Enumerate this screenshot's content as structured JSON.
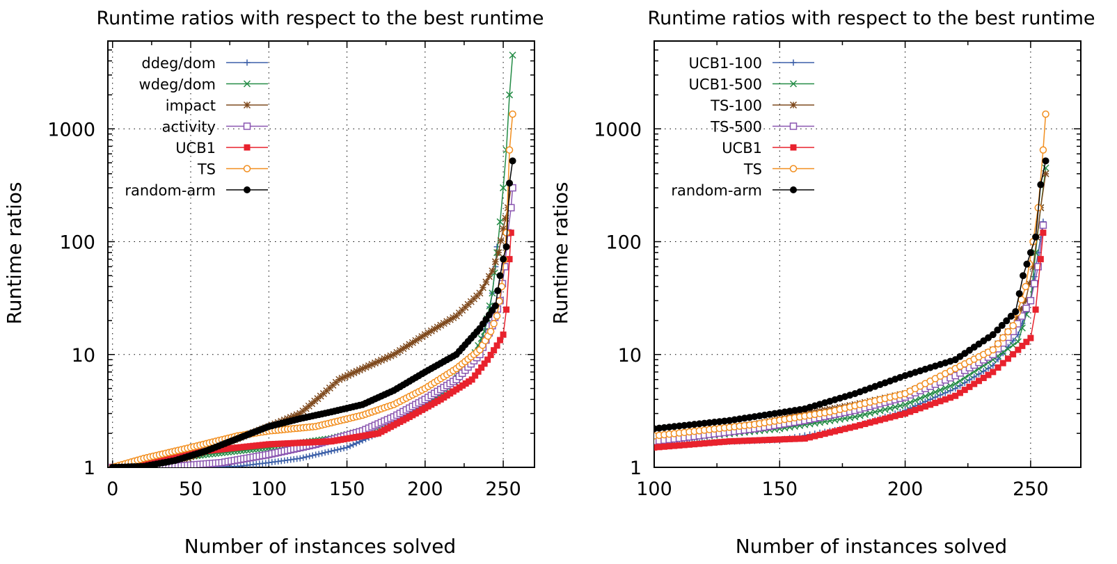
{
  "chart_data": [
    {
      "type": "line",
      "title": "Runtime ratios with respect to the best runtime",
      "xlabel": "Number of instances solved",
      "ylabel": "Runtime ratios",
      "yscale": "log",
      "xlim": [
        -3,
        270
      ],
      "ylim": [
        1,
        6000
      ],
      "xticks": [
        0,
        50,
        100,
        150,
        200,
        250
      ],
      "xtick_labels": [
        "0",
        "50",
        "100",
        "150",
        "200",
        "250"
      ],
      "yticks": [
        1,
        10,
        100,
        1000
      ],
      "ytick_labels": [
        "1",
        "10",
        "100",
        "1000"
      ],
      "grid": true,
      "legend_position": "top-left",
      "series": [
        {
          "name": "ddeg/dom",
          "color": "#3b5fa8",
          "marker": "plus",
          "points": [
            [
              0,
              1
            ],
            [
              40,
              1
            ],
            [
              80,
              1.02
            ],
            [
              100,
              1.1
            ],
            [
              120,
              1.2
            ],
            [
              150,
              1.5
            ],
            [
              170,
              2
            ],
            [
              190,
              3
            ],
            [
              210,
              4.5
            ],
            [
              225,
              7
            ],
            [
              235,
              12
            ],
            [
              240,
              20
            ],
            [
              243,
              35
            ],
            [
              245,
              60
            ],
            [
              246,
              90
            ]
          ]
        },
        {
          "name": "wdeg/dom",
          "color": "#238b45",
          "marker": "x",
          "points": [
            [
              0,
              1
            ],
            [
              30,
              1.15
            ],
            [
              60,
              1.3
            ],
            [
              100,
              1.5
            ],
            [
              140,
              1.8
            ],
            [
              170,
              2.3
            ],
            [
              195,
              3.3
            ],
            [
              215,
              5
            ],
            [
              230,
              9
            ],
            [
              238,
              16
            ],
            [
              243,
              35
            ],
            [
              246,
              80
            ],
            [
              248,
              150
            ],
            [
              250,
              300
            ],
            [
              252,
              650
            ],
            [
              254,
              2000
            ],
            [
              256,
              4500
            ]
          ]
        },
        {
          "name": "impact",
          "color": "#7f4a1e",
          "marker": "star",
          "points": [
            [
              0,
              1
            ],
            [
              20,
              1.02
            ],
            [
              40,
              1.1
            ],
            [
              60,
              1.4
            ],
            [
              80,
              1.8
            ],
            [
              100,
              2.3
            ],
            [
              120,
              3
            ],
            [
              135,
              4.5
            ],
            [
              145,
              6
            ],
            [
              160,
              7.5
            ],
            [
              180,
              10
            ],
            [
              200,
              15
            ],
            [
              220,
              22
            ],
            [
              235,
              35
            ],
            [
              243,
              55
            ],
            [
              247,
              80
            ],
            [
              250,
              130
            ],
            [
              253,
              200
            ],
            [
              255,
              300
            ]
          ]
        },
        {
          "name": "activity",
          "color": "#8a55b0",
          "marker": "square",
          "points": [
            [
              0,
              1
            ],
            [
              40,
              1.02
            ],
            [
              70,
              1.1
            ],
            [
              100,
              1.3
            ],
            [
              130,
              1.6
            ],
            [
              160,
              2.1
            ],
            [
              180,
              2.8
            ],
            [
              200,
              4
            ],
            [
              220,
              6
            ],
            [
              235,
              10
            ],
            [
              243,
              18
            ],
            [
              248,
              30
            ],
            [
              251,
              60
            ],
            [
              253,
              120
            ],
            [
              255,
              200
            ],
            [
              256,
              300
            ]
          ]
        },
        {
          "name": "UCB1",
          "color": "#e8222d",
          "marker": "filled-square",
          "points": [
            [
              0,
              1
            ],
            [
              30,
              1.15
            ],
            [
              60,
              1.4
            ],
            [
              100,
              1.6
            ],
            [
              140,
              1.7
            ],
            [
              170,
              2
            ],
            [
              190,
              2.8
            ],
            [
              210,
              4
            ],
            [
              230,
              6
            ],
            [
              240,
              9
            ],
            [
              246,
              12
            ],
            [
              250,
              15
            ],
            [
              252,
              25
            ],
            [
              254,
              70
            ],
            [
              255,
              120
            ]
          ]
        },
        {
          "name": "TS",
          "color": "#f28e1e",
          "marker": "circle",
          "points": [
            [
              0,
              1
            ],
            [
              20,
              1.2
            ],
            [
              50,
              1.5
            ],
            [
              80,
              1.9
            ],
            [
              100,
              2.1
            ],
            [
              130,
              2.3
            ],
            [
              160,
              2.9
            ],
            [
              180,
              3.6
            ],
            [
              200,
              5
            ],
            [
              220,
              7.5
            ],
            [
              235,
              11
            ],
            [
              242,
              16
            ],
            [
              246,
              22
            ],
            [
              249,
              40
            ],
            [
              252,
              120
            ],
            [
              254,
              650
            ],
            [
              256,
              1350
            ]
          ]
        },
        {
          "name": "random-arm",
          "color": "#000000",
          "marker": "filled-circle",
          "points": [
            [
              0,
              1
            ],
            [
              20,
              1.02
            ],
            [
              40,
              1.15
            ],
            [
              60,
              1.4
            ],
            [
              80,
              1.8
            ],
            [
              100,
              2.3
            ],
            [
              120,
              2.7
            ],
            [
              140,
              3.1
            ],
            [
              160,
              3.6
            ],
            [
              180,
              4.8
            ],
            [
              200,
              7
            ],
            [
              220,
              10
            ],
            [
              235,
              17
            ],
            [
              245,
              27
            ],
            [
              248,
              50
            ],
            [
              250,
              70
            ],
            [
              252,
              90
            ],
            [
              254,
              330
            ],
            [
              256,
              520
            ]
          ]
        }
      ]
    },
    {
      "type": "line",
      "title": "Runtime ratios with respect to the best runtime",
      "xlabel": "Number of instances solved",
      "ylabel": "Runtime ratios",
      "yscale": "log",
      "xlim": [
        100,
        270
      ],
      "ylim": [
        1,
        6000
      ],
      "xticks": [
        100,
        150,
        200,
        250
      ],
      "xtick_labels": [
        "100",
        "150",
        "200",
        "250"
      ],
      "yticks": [
        1,
        10,
        100,
        1000
      ],
      "ytick_labels": [
        "1",
        "10",
        "100",
        "1000"
      ],
      "grid": true,
      "legend_position": "top-left",
      "series": [
        {
          "name": "UCB1-100",
          "color": "#3b5fa8",
          "marker": "plus",
          "points": [
            [
              100,
              1.6
            ],
            [
              150,
              1.75
            ],
            [
              180,
              2.3
            ],
            [
              200,
              3.2
            ],
            [
              220,
              5
            ],
            [
              235,
              8
            ],
            [
              245,
              15
            ],
            [
              250,
              30
            ],
            [
              253,
              80
            ],
            [
              255,
              150
            ]
          ]
        },
        {
          "name": "UCB1-500",
          "color": "#238b45",
          "marker": "x",
          "points": [
            [
              100,
              1.7
            ],
            [
              150,
              2.2
            ],
            [
              180,
              2.8
            ],
            [
              200,
              3.6
            ],
            [
              220,
              5.5
            ],
            [
              235,
              9
            ],
            [
              245,
              13
            ],
            [
              250,
              30
            ],
            [
              252,
              80
            ],
            [
              254,
              200
            ],
            [
              256,
              450
            ]
          ]
        },
        {
          "name": "TS-100",
          "color": "#7f4a1e",
          "marker": "star",
          "points": [
            [
              100,
              1.8
            ],
            [
              140,
              2.4
            ],
            [
              160,
              3
            ],
            [
              180,
              3.6
            ],
            [
              200,
              4.5
            ],
            [
              220,
              7
            ],
            [
              235,
              11
            ],
            [
              243,
              18
            ],
            [
              248,
              30
            ],
            [
              251,
              60
            ],
            [
              254,
              200
            ],
            [
              256,
              400
            ]
          ]
        },
        {
          "name": "TS-500",
          "color": "#8a55b0",
          "marker": "square",
          "points": [
            [
              100,
              1.7
            ],
            [
              140,
              2.2
            ],
            [
              160,
              2.6
            ],
            [
              180,
              3.2
            ],
            [
              200,
              4.2
            ],
            [
              220,
              6.5
            ],
            [
              235,
              10
            ],
            [
              243,
              16
            ],
            [
              250,
              30
            ],
            [
              253,
              60
            ],
            [
              255,
              140
            ]
          ]
        },
        {
          "name": "UCB1",
          "color": "#e8222d",
          "marker": "filled-square",
          "points": [
            [
              100,
              1.5
            ],
            [
              130,
              1.7
            ],
            [
              160,
              1.8
            ],
            [
              180,
              2.3
            ],
            [
              200,
              3
            ],
            [
              220,
              4.3
            ],
            [
              235,
              7
            ],
            [
              245,
              11
            ],
            [
              250,
              14
            ],
            [
              252,
              25
            ],
            [
              254,
              70
            ],
            [
              255,
              120
            ]
          ]
        },
        {
          "name": "TS",
          "color": "#f28e1e",
          "marker": "circle",
          "points": [
            [
              100,
              1.9
            ],
            [
              140,
              2.4
            ],
            [
              170,
              3.1
            ],
            [
              200,
              4.5
            ],
            [
              220,
              7.5
            ],
            [
              235,
              11
            ],
            [
              243,
              18
            ],
            [
              248,
              40
            ],
            [
              251,
              100
            ],
            [
              253,
              200
            ],
            [
              255,
              650
            ],
            [
              256,
              1350
            ]
          ]
        },
        {
          "name": "random-arm",
          "color": "#000000",
          "marker": "filled-circle",
          "points": [
            [
              100,
              2.2
            ],
            [
              130,
              2.6
            ],
            [
              160,
              3.3
            ],
            [
              180,
              4.5
            ],
            [
              200,
              6.5
            ],
            [
              220,
              9
            ],
            [
              235,
              15
            ],
            [
              244,
              24
            ],
            [
              247,
              50
            ],
            [
              250,
              80
            ],
            [
              252,
              110
            ],
            [
              254,
              320
            ],
            [
              256,
              520
            ]
          ]
        }
      ]
    }
  ]
}
